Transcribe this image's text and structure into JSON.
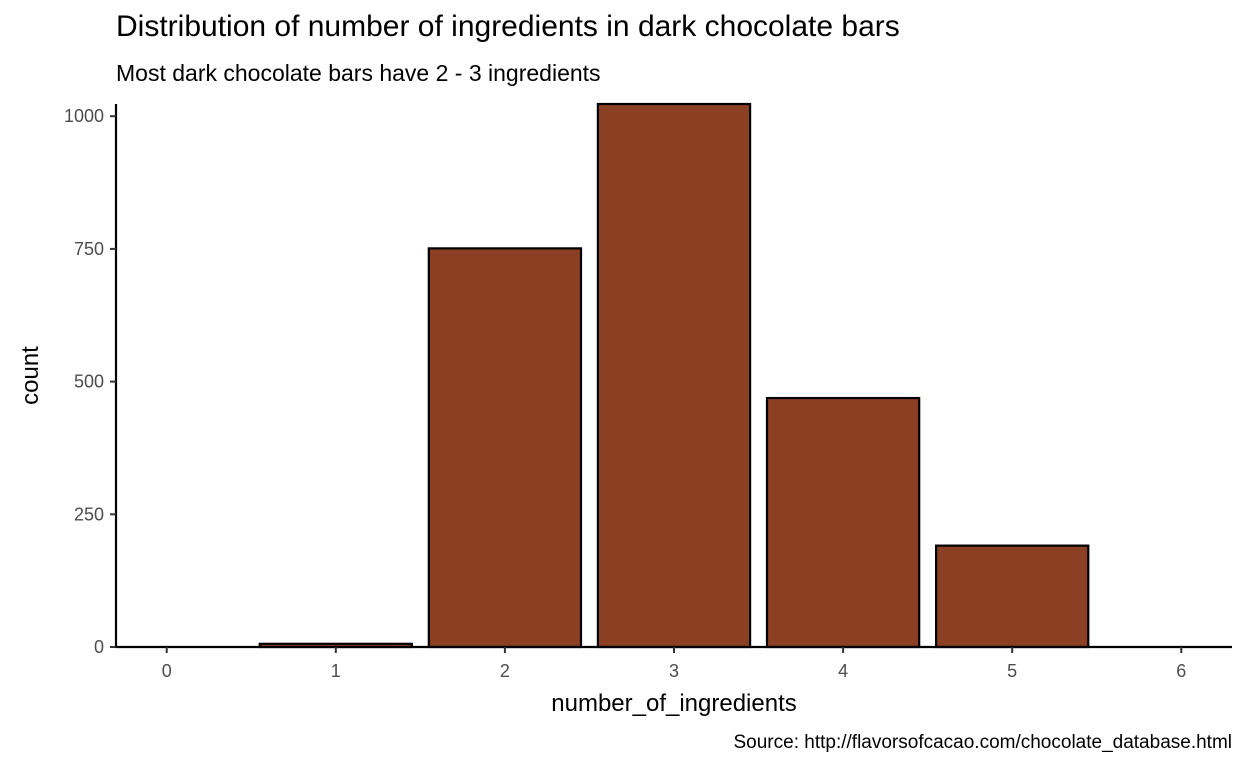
{
  "chart_data": {
    "type": "bar",
    "title": "Distribution of number of ingredients in dark chocolate bars",
    "subtitle": "Most dark chocolate bars have 2 - 3 ingredients",
    "caption": "Source: http://flavorsofcacao.com/chocolate_database.html",
    "xlabel": "number_of_ingredients",
    "ylabel": "count",
    "categories": [
      "1",
      "2",
      "3",
      "4",
      "5"
    ],
    "x": [
      1,
      2,
      3,
      4,
      5
    ],
    "values": [
      6,
      751,
      1023,
      469,
      191
    ],
    "xlim": [
      -0.3,
      6.3
    ],
    "ylim": [
      0,
      1023
    ],
    "x_ticks": [
      0,
      1,
      2,
      3,
      4,
      5,
      6
    ],
    "y_ticks": [
      0,
      250,
      500,
      750,
      1000
    ],
    "grid": false,
    "legend": "none",
    "bar_color": "#8B4023",
    "bar_outline": "#000000"
  }
}
